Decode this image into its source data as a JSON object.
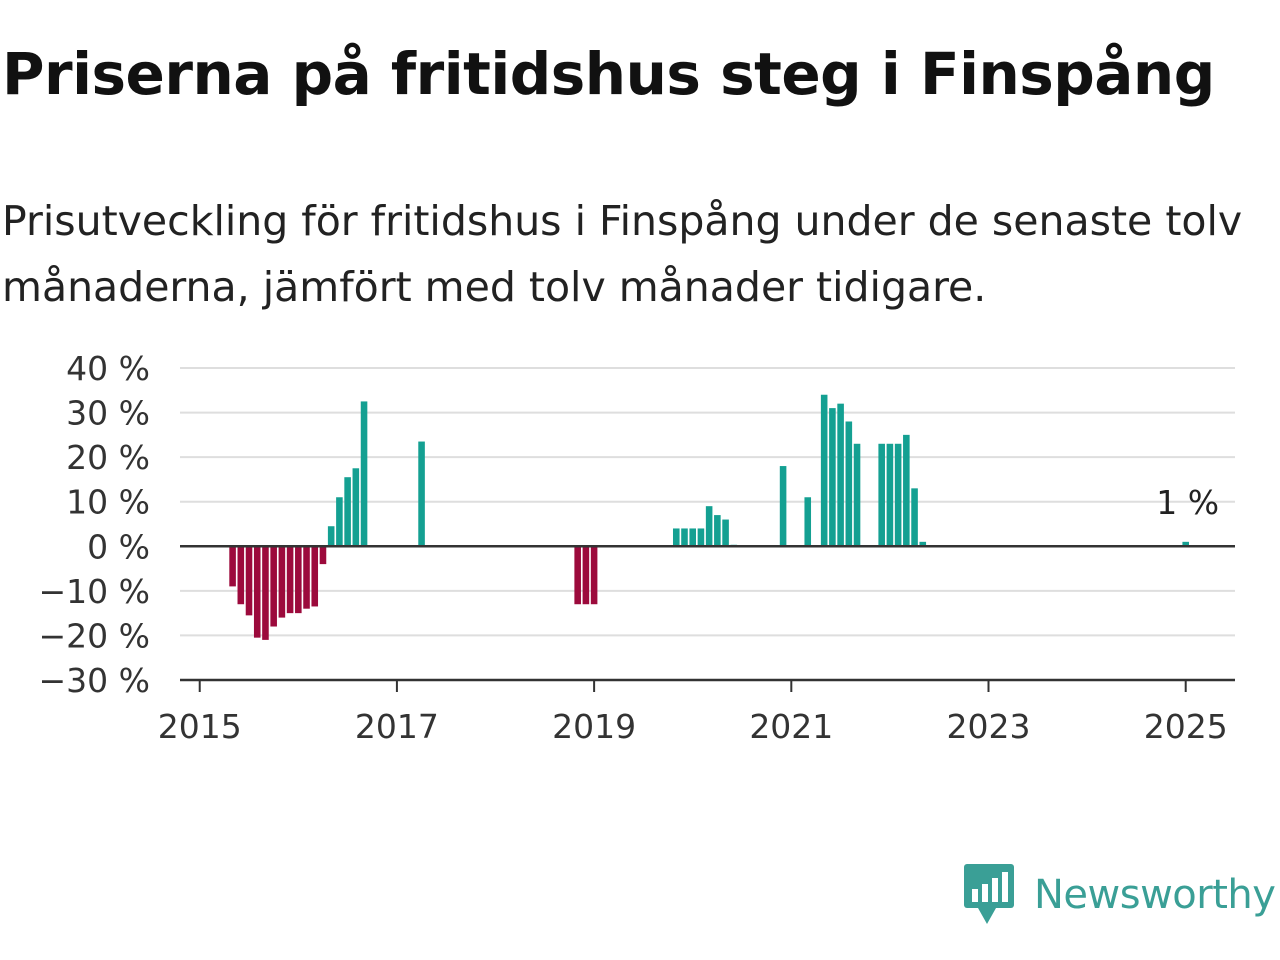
{
  "title": "Priserna på fritidshus steg i Finspång",
  "subtitle": "Prisutveckling för fritidshus i Finspång under de senaste tolv månaderna, jämfört med tolv månader tidigare.",
  "brand": {
    "name": "Newsworthy",
    "icon": "newsworthy-logo-icon",
    "color": "#3a9f96"
  },
  "colors": {
    "positive": "#14a092",
    "negative": "#9c0a3c",
    "grid": "#dedede",
    "axis": "#333333"
  },
  "chart_data": {
    "type": "bar",
    "title": "Priserna på fritidshus steg i Finspång",
    "xlabel": "",
    "ylabel": "",
    "ylim": [
      -30,
      40
    ],
    "xlim": [
      2014.8,
      2025.5
    ],
    "y_ticks": [
      40,
      30,
      20,
      10,
      0,
      -10,
      -20,
      -30
    ],
    "y_tick_labels": [
      "40 %",
      "30 %",
      "20 %",
      "10 %",
      "0 %",
      "−10 %",
      "−20 %",
      "−30 %"
    ],
    "x_ticks": [
      2015,
      2017,
      2019,
      2021,
      2023,
      2025
    ],
    "x_tick_labels": [
      "2015",
      "2017",
      "2019",
      "2021",
      "2023",
      "2025"
    ],
    "grid": true,
    "series": [
      {
        "x": [
          "2015-05",
          "2015-06",
          "2015-07",
          "2015-08",
          "2015-09",
          "2015-10",
          "2015-11",
          "2015-12",
          "2016-01",
          "2016-02",
          "2016-03",
          "2016-04",
          "2016-05",
          "2016-06",
          "2016-07",
          "2016-08",
          "2016-09",
          "2017-04",
          "2018-11",
          "2018-12",
          "2019-01",
          "2019-11",
          "2019-12",
          "2020-01",
          "2020-02",
          "2020-03",
          "2020-04",
          "2020-05",
          "2020-06",
          "2020-12",
          "2021-03",
          "2021-05",
          "2021-06",
          "2021-07",
          "2021-08",
          "2021-09",
          "2021-12",
          "2022-01",
          "2022-02",
          "2022-03",
          "2022-04",
          "2022-05",
          "2025-01"
        ],
        "values": [
          -9,
          -13,
          -15.5,
          -20.5,
          -21,
          -18,
          -16,
          -15,
          -15,
          -14,
          -13.5,
          -4,
          4.5,
          11,
          15.5,
          17.5,
          32.5,
          23.5,
          -13,
          -13,
          -13,
          4,
          4,
          4,
          4,
          9,
          7,
          6,
          0,
          18,
          11,
          34,
          31,
          32,
          28,
          23,
          23,
          23,
          23,
          25,
          13,
          1,
          1
        ]
      }
    ],
    "annotations": [
      {
        "x": "2025-01",
        "text": "1 %"
      }
    ]
  }
}
